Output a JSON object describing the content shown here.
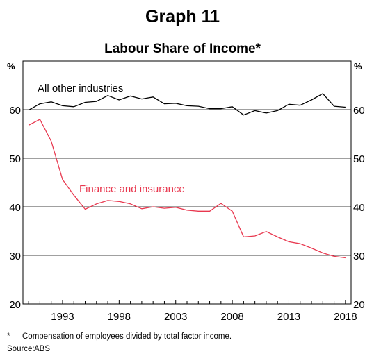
{
  "graph_label": "Graph 11",
  "footnote": {
    "mark": "*",
    "text": "Compensation of employees divided by total factor income."
  },
  "source": {
    "label": "Source:",
    "value": "ABS"
  },
  "chart_data": {
    "type": "line",
    "title": "Labour Share of Income*",
    "ylabel_left": "%",
    "ylabel_right": "%",
    "ylim": [
      20,
      70
    ],
    "yticks": [
      20,
      30,
      40,
      50,
      60
    ],
    "xlim": [
      1989.5,
      2018.5
    ],
    "xticks": [
      1993,
      1998,
      2003,
      2008,
      2013,
      2018
    ],
    "grid": true,
    "x": [
      1990,
      1991,
      1992,
      1993,
      1994,
      1995,
      1996,
      1997,
      1998,
      1999,
      2000,
      2001,
      2002,
      2003,
      2004,
      2005,
      2006,
      2007,
      2008,
      2009,
      2010,
      2011,
      2012,
      2013,
      2014,
      2015,
      2016,
      2017,
      2018
    ],
    "series": [
      {
        "name": "All other industries",
        "color": "#000000",
        "values": [
          59.9,
          61.2,
          61.6,
          60.8,
          60.6,
          61.5,
          61.7,
          62.9,
          62.0,
          62.8,
          62.2,
          62.6,
          61.2,
          61.3,
          60.8,
          60.7,
          60.2,
          60.2,
          60.6,
          58.9,
          59.8,
          59.3,
          59.8,
          61.1,
          60.9,
          62.0,
          63.3,
          60.7,
          60.5
        ]
      },
      {
        "name": "Finance and insurance",
        "color": "#e8384f",
        "values": [
          56.8,
          58.0,
          53.5,
          45.6,
          42.4,
          39.5,
          40.6,
          41.3,
          41.1,
          40.6,
          39.6,
          40.0,
          39.7,
          39.9,
          39.3,
          39.1,
          39.1,
          40.7,
          39.1,
          33.8,
          34.0,
          34.9,
          33.8,
          32.8,
          32.4,
          31.5,
          30.5,
          29.8,
          29.5
        ]
      }
    ]
  }
}
